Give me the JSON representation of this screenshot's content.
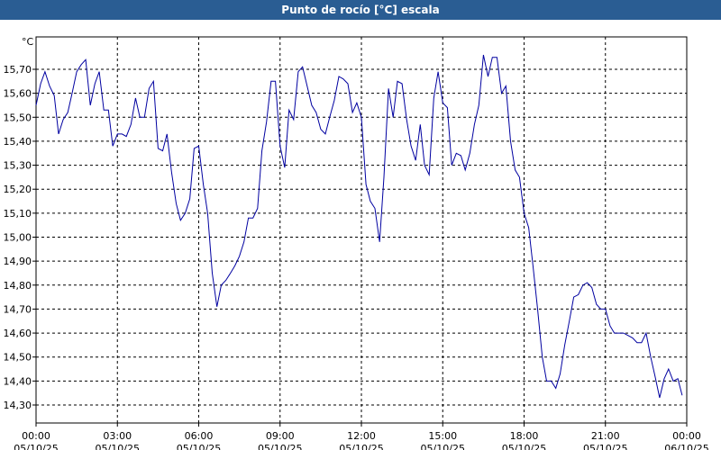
{
  "header": {
    "title": "Punto de rocío [°C] escala"
  },
  "chart_data": {
    "type": "line",
    "title": "Punto de rocío [°C] escala",
    "ylabel": "°C",
    "ylim": [
      14.3,
      15.8
    ],
    "xlim": [
      0,
      24
    ],
    "grid": true,
    "y_ticks": [
      "15,70",
      "15,60",
      "15,50",
      "15,40",
      "15,30",
      "15,20",
      "15,10",
      "15,00",
      "14,90",
      "14,80",
      "14,70",
      "14,60",
      "14,50",
      "14,40",
      "14,30"
    ],
    "x_ticks": [
      {
        "time": "00:00",
        "date": "05/10/25"
      },
      {
        "time": "03:00",
        "date": "05/10/25"
      },
      {
        "time": "06:00",
        "date": "05/10/25"
      },
      {
        "time": "09:00",
        "date": "05/10/25"
      },
      {
        "time": "12:00",
        "date": "05/10/25"
      },
      {
        "time": "15:00",
        "date": "05/10/25"
      },
      {
        "time": "18:00",
        "date": "05/10/25"
      },
      {
        "time": "21:00",
        "date": "05/10/25"
      },
      {
        "time": "00:00",
        "date": "06/10/25"
      }
    ],
    "series": [
      {
        "color": "#0000a0",
        "x": [
          0,
          0.17,
          0.33,
          0.5,
          0.67,
          0.83,
          1.0,
          1.17,
          1.33,
          1.5,
          1.67,
          1.83,
          2.0,
          2.17,
          2.33,
          2.5,
          2.67,
          2.83,
          3.0,
          3.17,
          3.33,
          3.5,
          3.67,
          3.83,
          4.0,
          4.17,
          4.33,
          4.5,
          4.67,
          4.83,
          5.0,
          5.17,
          5.33,
          5.5,
          5.67,
          5.83,
          6.0,
          6.17,
          6.33,
          6.5,
          6.67,
          6.83,
          7.0,
          7.17,
          7.33,
          7.5,
          7.67,
          7.83,
          8.0,
          8.17,
          8.33,
          8.5,
          8.67,
          8.83,
          9.0,
          9.17,
          9.33,
          9.5,
          9.67,
          9.83,
          10.0,
          10.17,
          10.33,
          10.5,
          10.67,
          10.83,
          11.0,
          11.17,
          11.33,
          11.5,
          11.67,
          11.83,
          12.0,
          12.17,
          12.33,
          12.5,
          12.67,
          12.83,
          13.0,
          13.17,
          13.33,
          13.5,
          13.67,
          13.83,
          14.0,
          14.17,
          14.33,
          14.5,
          14.67,
          14.83,
          15.0,
          15.17,
          15.33,
          15.5,
          15.67,
          15.83,
          16.0,
          16.17,
          16.33,
          16.5,
          16.67,
          16.83,
          17.0,
          17.17,
          17.33,
          17.5,
          17.67,
          17.83,
          18.0,
          18.17,
          18.33,
          18.5,
          18.67,
          18.83,
          19.0,
          19.17,
          19.33,
          19.5,
          19.67,
          19.83,
          20.0,
          20.17,
          20.33,
          20.5,
          20.67,
          20.83,
          21.0,
          21.17,
          21.33,
          21.5,
          21.67,
          21.83,
          22.0,
          22.17,
          22.33,
          22.5,
          22.67,
          22.83,
          23.0,
          23.17,
          23.33,
          23.5,
          23.67,
          23.83
        ],
        "y": [
          15.55,
          15.64,
          15.69,
          15.63,
          15.59,
          15.43,
          15.49,
          15.52,
          15.6,
          15.69,
          15.72,
          15.74,
          15.55,
          15.64,
          15.69,
          15.53,
          15.53,
          15.38,
          15.43,
          15.43,
          15.42,
          15.47,
          15.58,
          15.5,
          15.5,
          15.62,
          15.65,
          15.37,
          15.36,
          15.43,
          15.27,
          15.14,
          15.07,
          15.1,
          15.16,
          15.37,
          15.38,
          15.22,
          15.1,
          14.85,
          14.71,
          14.8,
          14.82,
          14.85,
          14.88,
          14.92,
          14.98,
          15.08,
          15.08,
          15.12,
          15.36,
          15.48,
          15.65,
          15.65,
          15.38,
          15.29,
          15.53,
          15.49,
          15.69,
          15.71,
          15.63,
          15.55,
          15.52,
          15.45,
          15.43,
          15.5,
          15.57,
          15.67,
          15.66,
          15.64,
          15.52,
          15.56,
          15.5,
          15.22,
          15.15,
          15.12,
          14.98,
          15.25,
          15.62,
          15.5,
          15.65,
          15.64,
          15.49,
          15.38,
          15.32,
          15.47,
          15.3,
          15.26,
          15.58,
          15.69,
          15.56,
          15.54,
          15.3,
          15.35,
          15.34,
          15.28,
          15.35,
          15.47,
          15.55,
          15.76,
          15.67,
          15.75,
          15.75,
          15.6,
          15.63,
          15.4,
          15.28,
          15.25,
          15.1,
          15.04,
          14.88,
          14.7,
          14.5,
          14.4,
          14.4,
          14.37,
          14.43,
          14.55,
          14.65,
          14.75,
          14.76,
          14.8,
          14.81,
          14.79,
          14.72,
          14.7,
          14.7,
          14.63,
          14.6,
          14.6,
          14.6,
          14.59,
          14.58,
          14.56,
          14.56,
          14.6,
          14.5,
          14.42,
          14.33,
          14.41,
          14.45,
          14.4,
          14.41,
          14.34
        ]
      }
    ]
  }
}
